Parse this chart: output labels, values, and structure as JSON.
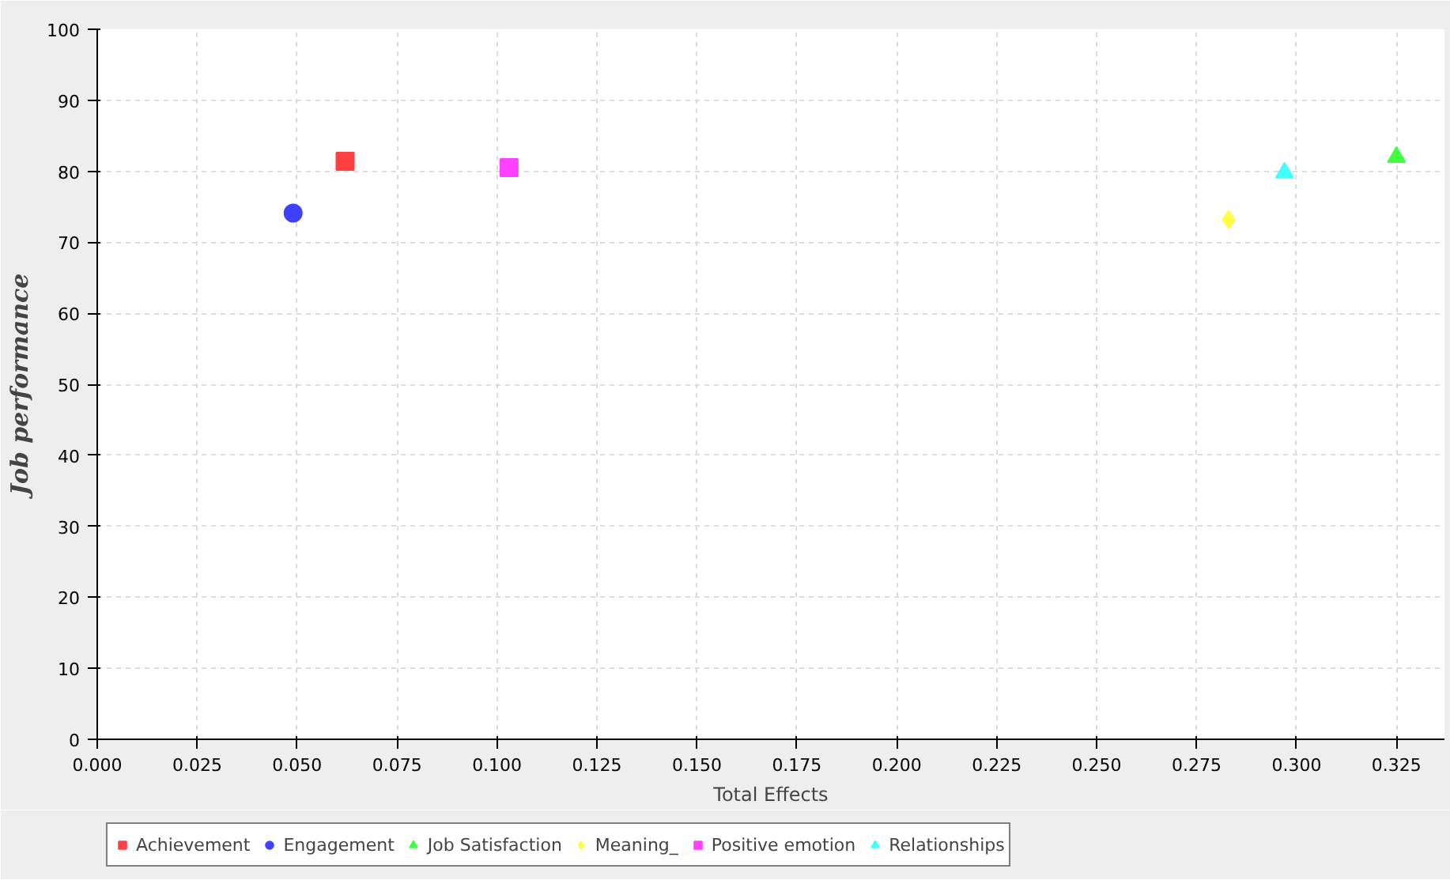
{
  "chart_data": {
    "type": "scatter",
    "xlabel": "Total Effects",
    "ylabel": "Job performance",
    "xlim": [
      0,
      0.337
    ],
    "ylim": [
      0,
      100
    ],
    "xticks": [
      {
        "value": 0,
        "label": "0.000"
      },
      {
        "value": 0.025,
        "label": "0.025"
      },
      {
        "value": 0.05,
        "label": "0.050"
      },
      {
        "value": 0.075,
        "label": "0.075"
      },
      {
        "value": 0.1,
        "label": "0.100"
      },
      {
        "value": 0.125,
        "label": "0.125"
      },
      {
        "value": 0.15,
        "label": "0.150"
      },
      {
        "value": 0.175,
        "label": "0.175"
      },
      {
        "value": 0.2,
        "label": "0.200"
      },
      {
        "value": 0.225,
        "label": "0.225"
      },
      {
        "value": 0.25,
        "label": "0.250"
      },
      {
        "value": 0.275,
        "label": "0.275"
      },
      {
        "value": 0.3,
        "label": "0.300"
      },
      {
        "value": 0.325,
        "label": "0.325"
      }
    ],
    "yticks": [
      0,
      10,
      20,
      30,
      40,
      50,
      60,
      70,
      80,
      90,
      100
    ],
    "grid": true,
    "legend": "bottom",
    "series": [
      {
        "name": "Achievement",
        "color": "#ff4040",
        "marker": "square",
        "x": [
          0.062
        ],
        "values": [
          81.4
        ]
      },
      {
        "name": "Engagement",
        "color": "#4040ff",
        "marker": "circle",
        "x": [
          0.049
        ],
        "values": [
          74.1
        ]
      },
      {
        "name": "Job Satisfaction",
        "color": "#40ff40",
        "marker": "triangle",
        "x": [
          0.325
        ],
        "values": [
          82.0
        ]
      },
      {
        "name": "Meaning_",
        "color": "#ffff40",
        "marker": "diamond",
        "x": [
          0.283
        ],
        "values": [
          73.2
        ]
      },
      {
        "name": "Positive emotion",
        "color": "#ff40ff",
        "marker": "square",
        "x": [
          0.103
        ],
        "values": [
          80.5
        ]
      },
      {
        "name": "Relationships",
        "color": "#40ffff",
        "marker": "triangle",
        "x": [
          0.297
        ],
        "values": [
          79.8
        ]
      }
    ]
  }
}
